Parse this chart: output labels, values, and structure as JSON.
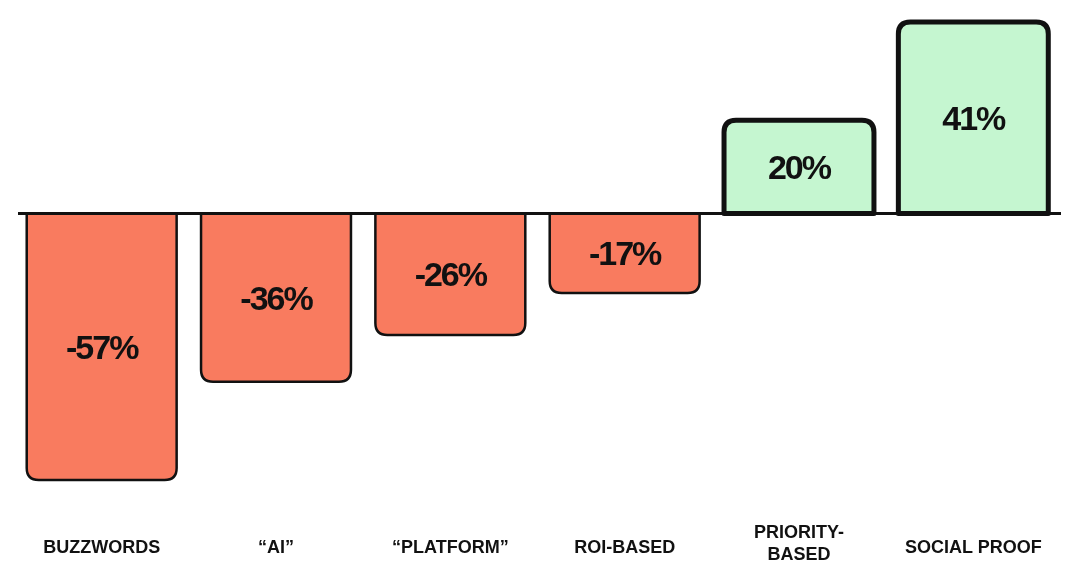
{
  "chart_data": {
    "type": "bar",
    "categories": [
      "BUZZWORDS",
      "“AI”",
      "“PLATFORM”",
      "ROI-BASED",
      "PRIORITY-BASED",
      "SOCIAL PROOF"
    ],
    "values": [
      -57,
      -36,
      -26,
      -17,
      20,
      41
    ],
    "value_labels": [
      "-57%",
      "-36%",
      "-26%",
      "-17%",
      "20%",
      "41%"
    ],
    "colors": [
      "#f97b5f",
      "#f97b5f",
      "#f97b5f",
      "#f97b5f",
      "#c5f6d0",
      "#c5f6d0"
    ]
  }
}
